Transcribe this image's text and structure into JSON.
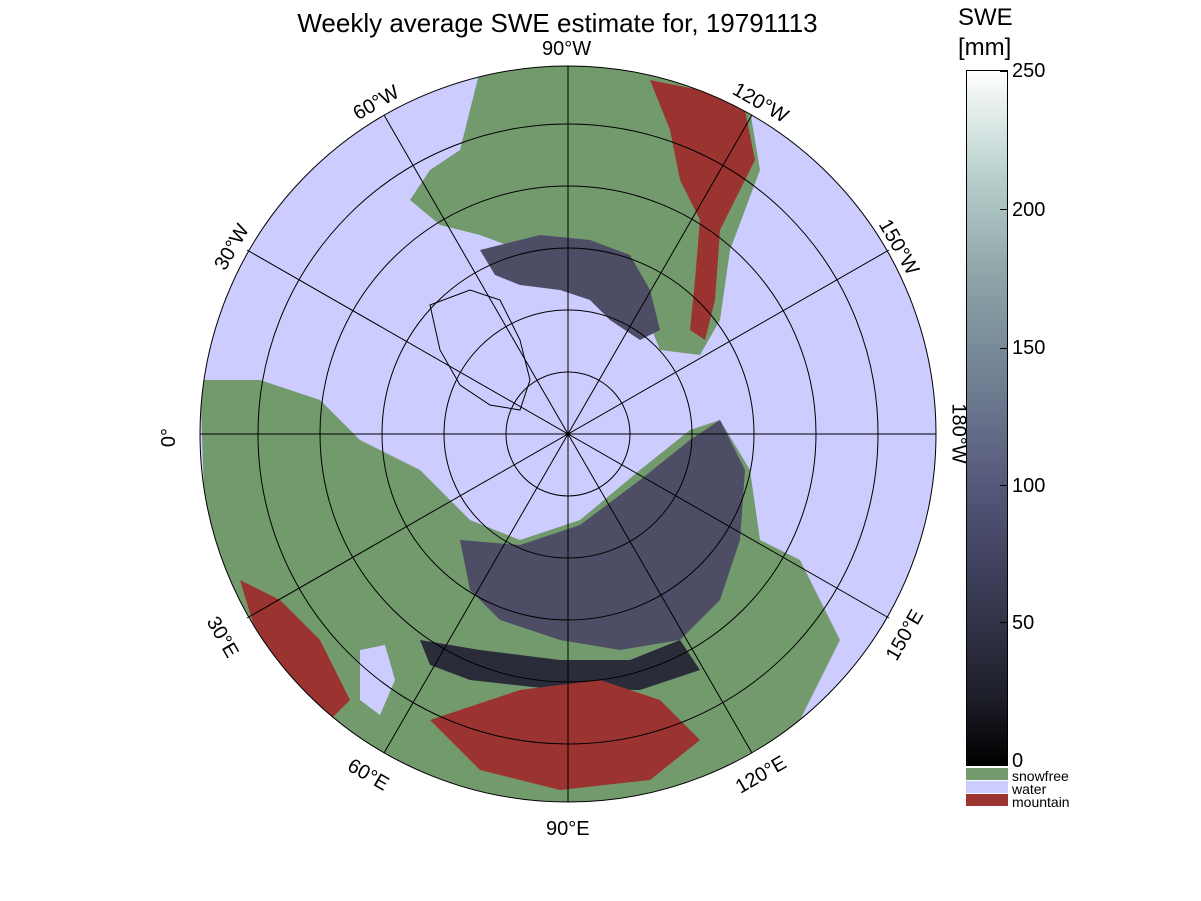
{
  "title": "Weekly average SWE estimate for, 19791113",
  "colorbar": {
    "title_line1": "SWE",
    "title_line2": "[mm]",
    "ticks": [
      "0",
      "50",
      "100",
      "150",
      "200",
      "250"
    ],
    "range": [
      0,
      250
    ],
    "categories": [
      {
        "label": "snowfree",
        "color": "#739a6d"
      },
      {
        "label": "water",
        "color": "#ccccff"
      },
      {
        "label": "mountain",
        "color": "#9b3431"
      }
    ]
  },
  "map": {
    "projection": "north polar stereographic",
    "meridian_labels": [
      "90°W",
      "120°W",
      "150°W",
      "180°W",
      "150°E",
      "120°E",
      "90°E",
      "60°E",
      "30°E",
      "0°",
      "30°W",
      "60°W"
    ],
    "colors": {
      "water": "#ccccff",
      "land": "#739a6d",
      "mountain": "#9b3431",
      "snow": "#4d4e66"
    }
  }
}
